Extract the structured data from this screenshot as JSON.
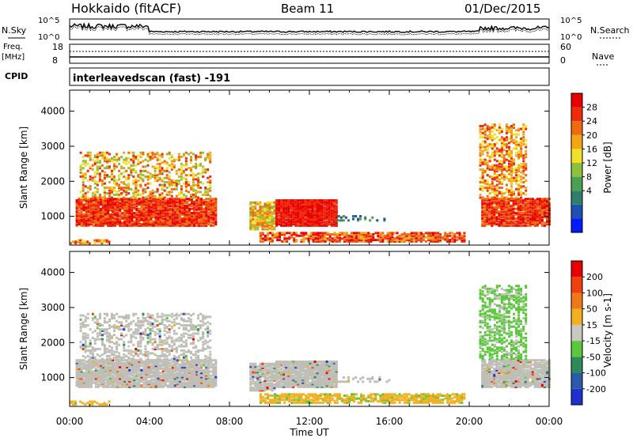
{
  "header": {
    "station": "Hokkaido (fitACF)",
    "beam": "Beam 11",
    "date": "01/Dec/2015"
  },
  "noise_panel": {
    "left_label": "N.Sky",
    "right_label": "N.Search",
    "top_tick": "10^5",
    "bottom_tick": "10^0"
  },
  "freq_panel": {
    "left_label_1": "Freq.",
    "left_label_2": "[MHz]",
    "left_ticks": [
      "18",
      "8"
    ],
    "right_label": "Nave",
    "right_ticks": [
      "60",
      "0"
    ]
  },
  "cpid": {
    "label": "CPID",
    "value": "interleavedscan (fast) -191"
  },
  "chart_data": [
    {
      "type": "heatmap",
      "name": "power",
      "ylabel": "Slant Range [km]",
      "xlabel": "Time UT",
      "ylim": [
        180,
        4600
      ],
      "yticks": [
        1000,
        2000,
        3000,
        4000
      ],
      "xlim_hours": [
        0,
        24
      ],
      "xticks": [
        "00:00",
        "04:00",
        "08:00",
        "12:00",
        "16:00",
        "20:00",
        "00:00"
      ],
      "colorbar": {
        "label": "Power [dB]",
        "ticks": [
          "28",
          "24",
          "20",
          "16",
          "12",
          "8",
          "4"
        ],
        "colors": [
          "#0019ff",
          "#1e50b4",
          "#2f7f6e",
          "#4aa050",
          "#8fc03c",
          "#f0e02a",
          "#f2a516",
          "#f06a10",
          "#f02b0c",
          "#e80000"
        ]
      }
    },
    {
      "type": "heatmap",
      "name": "velocity",
      "ylabel": "Slant Range [km]",
      "xlabel": "Time UT",
      "ylim": [
        180,
        4600
      ],
      "yticks": [
        1000,
        2000,
        3000,
        4000
      ],
      "xlim_hours": [
        0,
        24
      ],
      "xticks": [
        "00:00",
        "04:00",
        "08:00",
        "12:00",
        "16:00",
        "20:00",
        "00:00"
      ],
      "colorbar": {
        "label": "Velocity [m s-1]",
        "ticks": [
          "200",
          "100",
          "50",
          "15",
          "-15",
          "-50",
          "-100",
          "-200"
        ],
        "colors": [
          "#1f2fd0",
          "#2a5aa8",
          "#2f8a5a",
          "#5ac83a",
          "#c8c8c0",
          "#f2b020",
          "#f07818",
          "#f04010",
          "#e80000"
        ]
      }
    }
  ],
  "colors": {
    "ground_scatter": "#bebeb6",
    "background": "#ffffff"
  }
}
